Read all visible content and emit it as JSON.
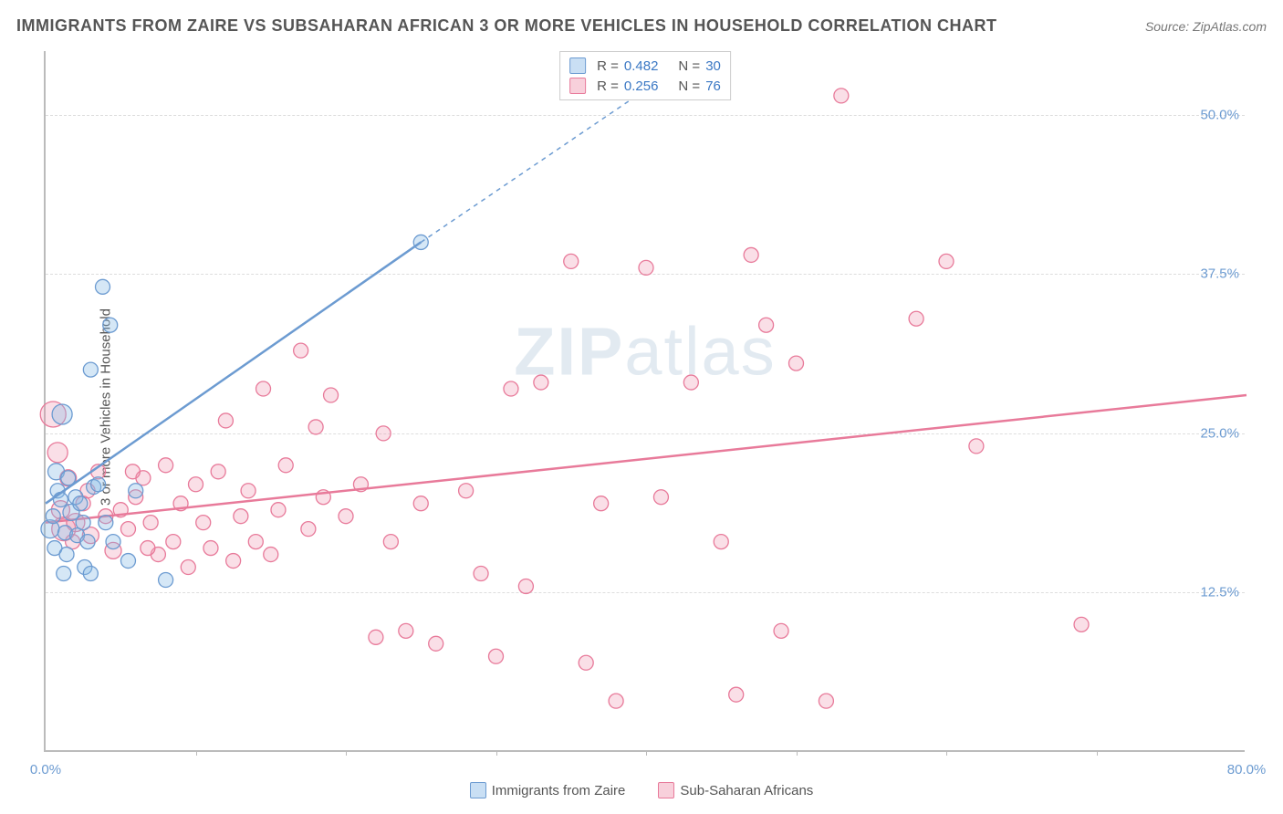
{
  "title": "IMMIGRANTS FROM ZAIRE VS SUBSAHARAN AFRICAN 3 OR MORE VEHICLES IN HOUSEHOLD CORRELATION CHART",
  "source": "Source: ZipAtlas.com",
  "y_label": "3 or more Vehicles in Household",
  "watermark_bold": "ZIP",
  "watermark_light": "atlas",
  "chart": {
    "type": "scatter",
    "xlim": [
      0,
      80
    ],
    "ylim": [
      0,
      55
    ],
    "x_ticks": [
      0,
      80
    ],
    "x_tick_labels": [
      "0.0%",
      "80.0%"
    ],
    "x_minor_ticks": [
      10,
      20,
      30,
      40,
      50,
      60,
      70
    ],
    "y_ticks": [
      12.5,
      25.0,
      37.5,
      50.0
    ],
    "y_tick_labels": [
      "12.5%",
      "25.0%",
      "37.5%",
      "50.0%"
    ],
    "background_color": "#ffffff",
    "grid_color": "#dddddd",
    "grid_dash": true,
    "series": [
      {
        "name": "Immigrants from Zaire",
        "color_fill": "rgba(135,185,230,0.35)",
        "color_stroke": "#6c9bd1",
        "marker_r_min": 7,
        "marker_r_max": 14,
        "r_value": 0.482,
        "n_value": 30,
        "trend": {
          "x1": 0,
          "y1": 19.5,
          "x2": 25,
          "y2": 40.0,
          "dash_extend_to_x": 40,
          "dash_extend_to_y": 52
        },
        "points": [
          {
            "x": 0.3,
            "y": 17.5,
            "r": 10
          },
          {
            "x": 0.5,
            "y": 18.5,
            "r": 8
          },
          {
            "x": 0.6,
            "y": 16.0,
            "r": 8
          },
          {
            "x": 0.7,
            "y": 22.0,
            "r": 9
          },
          {
            "x": 0.8,
            "y": 20.5,
            "r": 8
          },
          {
            "x": 1.0,
            "y": 19.8,
            "r": 8
          },
          {
            "x": 1.1,
            "y": 26.5,
            "r": 11
          },
          {
            "x": 1.2,
            "y": 14.0,
            "r": 8
          },
          {
            "x": 1.3,
            "y": 17.2,
            "r": 8
          },
          {
            "x": 1.4,
            "y": 15.5,
            "r": 8
          },
          {
            "x": 1.5,
            "y": 21.5,
            "r": 8
          },
          {
            "x": 1.7,
            "y": 18.8,
            "r": 9
          },
          {
            "x": 2.0,
            "y": 20.0,
            "r": 8
          },
          {
            "x": 2.1,
            "y": 17.0,
            "r": 8
          },
          {
            "x": 2.3,
            "y": 19.5,
            "r": 8
          },
          {
            "x": 2.5,
            "y": 18.0,
            "r": 8
          },
          {
            "x": 2.6,
            "y": 14.5,
            "r": 8
          },
          {
            "x": 2.8,
            "y": 16.5,
            "r": 8
          },
          {
            "x": 3.0,
            "y": 30.0,
            "r": 8
          },
          {
            "x": 3.2,
            "y": 20.8,
            "r": 8
          },
          {
            "x": 3.5,
            "y": 21.0,
            "r": 8
          },
          {
            "x": 3.8,
            "y": 36.5,
            "r": 8
          },
          {
            "x": 4.0,
            "y": 18.0,
            "r": 8
          },
          {
            "x": 4.3,
            "y": 33.5,
            "r": 8
          },
          {
            "x": 5.5,
            "y": 15.0,
            "r": 8
          },
          {
            "x": 6.0,
            "y": 20.5,
            "r": 8
          },
          {
            "x": 8.0,
            "y": 13.5,
            "r": 8
          },
          {
            "x": 3.0,
            "y": 14.0,
            "r": 8
          },
          {
            "x": 4.5,
            "y": 16.5,
            "r": 8
          },
          {
            "x": 25.0,
            "y": 40.0,
            "r": 8
          }
        ]
      },
      {
        "name": "Sub-Saharan Africans",
        "color_fill": "rgba(240,150,175,0.30)",
        "color_stroke": "#e87a9a",
        "marker_r_min": 7,
        "marker_r_max": 16,
        "r_value": 0.256,
        "n_value": 76,
        "trend": {
          "x1": 0,
          "y1": 18.0,
          "x2": 80,
          "y2": 28.0
        },
        "points": [
          {
            "x": 0.5,
            "y": 26.5,
            "r": 14
          },
          {
            "x": 0.8,
            "y": 23.5,
            "r": 11
          },
          {
            "x": 1.0,
            "y": 19.0,
            "r": 10
          },
          {
            "x": 1.2,
            "y": 17.5,
            "r": 13
          },
          {
            "x": 1.5,
            "y": 21.5,
            "r": 9
          },
          {
            "x": 2.0,
            "y": 18.0,
            "r": 10
          },
          {
            "x": 2.5,
            "y": 19.5,
            "r": 8
          },
          {
            "x": 3.0,
            "y": 17.0,
            "r": 9
          },
          {
            "x": 3.5,
            "y": 22.0,
            "r": 8
          },
          {
            "x": 4.0,
            "y": 18.5,
            "r": 8
          },
          {
            "x": 4.5,
            "y": 15.8,
            "r": 9
          },
          {
            "x": 5.0,
            "y": 19.0,
            "r": 8
          },
          {
            "x": 5.5,
            "y": 17.5,
            "r": 8
          },
          {
            "x": 6.0,
            "y": 20.0,
            "r": 8
          },
          {
            "x": 6.5,
            "y": 21.5,
            "r": 8
          },
          {
            "x": 7.0,
            "y": 18.0,
            "r": 8
          },
          {
            "x": 7.5,
            "y": 15.5,
            "r": 8
          },
          {
            "x": 8.0,
            "y": 22.5,
            "r": 8
          },
          {
            "x": 8.5,
            "y": 16.5,
            "r": 8
          },
          {
            "x": 9.0,
            "y": 19.5,
            "r": 8
          },
          {
            "x": 9.5,
            "y": 14.5,
            "r": 8
          },
          {
            "x": 10.0,
            "y": 21.0,
            "r": 8
          },
          {
            "x": 10.5,
            "y": 18.0,
            "r": 8
          },
          {
            "x": 11.0,
            "y": 16.0,
            "r": 8
          },
          {
            "x": 11.5,
            "y": 22.0,
            "r": 8
          },
          {
            "x": 12.0,
            "y": 26.0,
            "r": 8
          },
          {
            "x": 12.5,
            "y": 15.0,
            "r": 8
          },
          {
            "x": 13.0,
            "y": 18.5,
            "r": 8
          },
          {
            "x": 13.5,
            "y": 20.5,
            "r": 8
          },
          {
            "x": 14.0,
            "y": 16.5,
            "r": 8
          },
          {
            "x": 14.5,
            "y": 28.5,
            "r": 8
          },
          {
            "x": 15.0,
            "y": 15.5,
            "r": 8
          },
          {
            "x": 15.5,
            "y": 19.0,
            "r": 8
          },
          {
            "x": 16.0,
            "y": 22.5,
            "r": 8
          },
          {
            "x": 17.0,
            "y": 31.5,
            "r": 8
          },
          {
            "x": 17.5,
            "y": 17.5,
            "r": 8
          },
          {
            "x": 18.0,
            "y": 25.5,
            "r": 8
          },
          {
            "x": 18.5,
            "y": 20.0,
            "r": 8
          },
          {
            "x": 19.0,
            "y": 28.0,
            "r": 8
          },
          {
            "x": 20.0,
            "y": 18.5,
            "r": 8
          },
          {
            "x": 21.0,
            "y": 21.0,
            "r": 8
          },
          {
            "x": 22.0,
            "y": 9.0,
            "r": 8
          },
          {
            "x": 22.5,
            "y": 25.0,
            "r": 8
          },
          {
            "x": 23.0,
            "y": 16.5,
            "r": 8
          },
          {
            "x": 24.0,
            "y": 9.5,
            "r": 8
          },
          {
            "x": 25.0,
            "y": 19.5,
            "r": 8
          },
          {
            "x": 26.0,
            "y": 8.5,
            "r": 8
          },
          {
            "x": 28.0,
            "y": 20.5,
            "r": 8
          },
          {
            "x": 29.0,
            "y": 14.0,
            "r": 8
          },
          {
            "x": 30.0,
            "y": 7.5,
            "r": 8
          },
          {
            "x": 31.0,
            "y": 28.5,
            "r": 8
          },
          {
            "x": 32.0,
            "y": 13.0,
            "r": 8
          },
          {
            "x": 33.0,
            "y": 29.0,
            "r": 8
          },
          {
            "x": 35.0,
            "y": 38.5,
            "r": 8
          },
          {
            "x": 36.0,
            "y": 7.0,
            "r": 8
          },
          {
            "x": 37.0,
            "y": 19.5,
            "r": 8
          },
          {
            "x": 38.0,
            "y": 4.0,
            "r": 8
          },
          {
            "x": 40.0,
            "y": 38.0,
            "r": 8
          },
          {
            "x": 41.0,
            "y": 20.0,
            "r": 8
          },
          {
            "x": 43.0,
            "y": 29.0,
            "r": 8
          },
          {
            "x": 45.0,
            "y": 16.5,
            "r": 8
          },
          {
            "x": 46.0,
            "y": 4.5,
            "r": 8
          },
          {
            "x": 47.0,
            "y": 39.0,
            "r": 8
          },
          {
            "x": 48.0,
            "y": 33.5,
            "r": 8
          },
          {
            "x": 49.0,
            "y": 9.5,
            "r": 8
          },
          {
            "x": 50.0,
            "y": 30.5,
            "r": 8
          },
          {
            "x": 52.0,
            "y": 4.0,
            "r": 8
          },
          {
            "x": 53.0,
            "y": 51.5,
            "r": 8
          },
          {
            "x": 58.0,
            "y": 34.0,
            "r": 8
          },
          {
            "x": 60.0,
            "y": 38.5,
            "r": 8
          },
          {
            "x": 62.0,
            "y": 24.0,
            "r": 8
          },
          {
            "x": 69.0,
            "y": 10.0,
            "r": 8
          },
          {
            "x": 1.8,
            "y": 16.5,
            "r": 8
          },
          {
            "x": 2.8,
            "y": 20.5,
            "r": 8
          },
          {
            "x": 5.8,
            "y": 22.0,
            "r": 8
          },
          {
            "x": 6.8,
            "y": 16.0,
            "r": 8
          }
        ]
      }
    ]
  },
  "top_legend": {
    "rows": [
      {
        "swatch_class": "series-1",
        "r_label": "R =",
        "r_value": "0.482",
        "n_label": "N =",
        "n_value": "30"
      },
      {
        "swatch_class": "series-2",
        "r_label": "R =",
        "r_value": "0.256",
        "n_label": "N =",
        "n_value": "76"
      }
    ]
  },
  "bottom_legend": [
    {
      "swatch_class": "series-1",
      "label": "Immigrants from Zaire"
    },
    {
      "swatch_class": "series-2",
      "label": "Sub-Saharan Africans"
    }
  ]
}
